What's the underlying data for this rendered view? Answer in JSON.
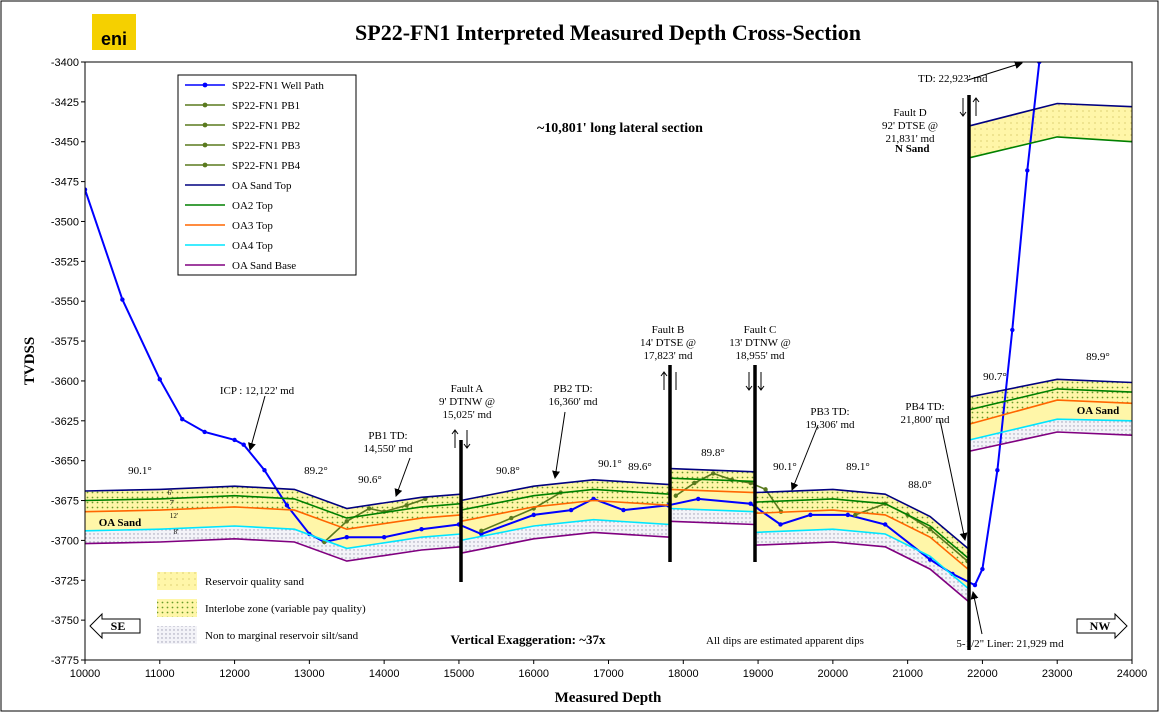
{
  "chart_data": {
    "type": "line",
    "logo": "eni",
    "title": "SP22-FN1 Interpreted Measured Depth Cross-Section",
    "x_label": "Measured Depth",
    "y_label": "TVDSS",
    "xlim": [
      10000,
      24000
    ],
    "xticks": [
      10000,
      11000,
      12000,
      13000,
      14000,
      15000,
      16000,
      17000,
      18000,
      19000,
      20000,
      21000,
      22000,
      23000,
      24000
    ],
    "ylim": [
      -3775,
      -3400
    ],
    "yticks": [
      -3775,
      -3750,
      -3725,
      -3700,
      -3675,
      -3650,
      -3625,
      -3600,
      -3575,
      -3550,
      -3525,
      -3500,
      -3475,
      -3450,
      -3425,
      -3400
    ],
    "series": [
      {
        "name": "SP22-FN1 Well Path",
        "color": "#0000ff",
        "marker": "circle",
        "x": [
          10000,
          10500,
          11000,
          11300,
          11600,
          12000,
          12122,
          12400,
          12700,
          13000,
          13200,
          13500,
          14000,
          14500,
          15000,
          15300,
          16000,
          16500,
          16800,
          17200,
          17800,
          18200,
          18900,
          19300,
          19700,
          20200,
          20700,
          21300,
          21600,
          21900,
          22000,
          22200,
          22400,
          22600,
          22760
        ],
        "values": [
          -3480,
          -3549,
          -3599,
          -3624,
          -3632,
          -3637,
          -3640,
          -3656,
          -3678,
          -3696,
          -3701,
          -3698,
          -3698,
          -3693,
          -3690,
          -3696,
          -3684,
          -3681,
          -3674,
          -3681,
          -3678,
          -3674,
          -3677,
          -3690,
          -3684,
          -3684,
          -3690,
          -3712,
          -3721,
          -3728,
          -3718,
          -3656,
          -3568,
          -3468,
          -3400
        ]
      },
      {
        "name": "SP22-FN1 PB1",
        "color": "#5a7a1e",
        "marker": "circle",
        "x": [
          13200,
          13500,
          13800,
          14000,
          14300,
          14550
        ],
        "values": [
          -3701,
          -3688,
          -3680,
          -3682,
          -3678,
          -3674
        ]
      },
      {
        "name": "SP22-FN1 PB2",
        "color": "#5a7a1e",
        "marker": "circle",
        "x": [
          15300,
          15700,
          16000,
          16360
        ],
        "values": [
          -3694,
          -3686,
          -3680,
          -3670
        ]
      },
      {
        "name": "SP22-FN1 PB3",
        "color": "#5a7a1e",
        "marker": "circle",
        "x": [
          17900,
          18150,
          18400,
          18650,
          18900,
          19100,
          19306
        ],
        "values": [
          -3672,
          -3664,
          -3658,
          -3662,
          -3664,
          -3668,
          -3682
        ]
      },
      {
        "name": "SP22-FN1 PB4",
        "color": "#5a7a1e",
        "marker": "circle",
        "x": [
          20300,
          20700,
          21000,
          21300,
          21800
        ],
        "values": [
          -3684,
          -3677,
          -3684,
          -3693,
          -3713
        ]
      },
      {
        "name": "OA Sand Top",
        "color": "#000080",
        "x": [
          10000,
          11000,
          12000,
          12800,
          13500,
          14500,
          15025,
          null,
          15025,
          16000,
          16800,
          17823,
          null,
          17823,
          18955,
          null,
          18955,
          20000,
          20700,
          21300,
          21831,
          null,
          21831,
          23000,
          24000,
          null,
          21831,
          23000,
          24000
        ],
        "values": [
          -3669,
          -3668,
          -3666,
          -3668,
          -3680,
          -3673,
          -3671,
          null,
          -3675,
          -3666,
          -3662,
          -3665,
          null,
          -3655,
          -3657,
          null,
          -3670,
          -3668,
          -3671,
          -3685,
          -3706,
          null,
          -3610,
          -3599,
          -3601,
          null,
          -3440,
          -3426,
          -3428
        ]
      },
      {
        "name": "OA2 Top",
        "color": "#008000",
        "x": [
          10000,
          11000,
          12000,
          12800,
          13500,
          14500,
          15025,
          null,
          15025,
          16000,
          16800,
          17823,
          null,
          17823,
          18955,
          null,
          18955,
          20000,
          20700,
          21300,
          21831,
          null,
          21831,
          23000,
          24000,
          null,
          21831,
          23000,
          24000
        ],
        "values": [
          -3675,
          -3674,
          -3672,
          -3674,
          -3686,
          -3679,
          -3677,
          null,
          -3681,
          -3672,
          -3668,
          -3671,
          null,
          -3661,
          -3663,
          null,
          -3676,
          -3674,
          -3677,
          -3691,
          -3712,
          null,
          -3618,
          -3605,
          -3607,
          null,
          -3460,
          -3447,
          -3450
        ]
      },
      {
        "name": "OA3 Top",
        "color": "#ff6600",
        "x": [
          10000,
          11000,
          12000,
          12800,
          13500,
          14500,
          15025,
          null,
          15025,
          16000,
          16800,
          17823,
          null,
          17823,
          18955,
          null,
          18955,
          20000,
          20700,
          21300,
          21831,
          null,
          21831,
          23000,
          24000
        ],
        "values": [
          -3682,
          -3681,
          -3679,
          -3681,
          -3693,
          -3686,
          -3684,
          null,
          -3688,
          -3679,
          -3675,
          -3678,
          null,
          -3668,
          -3670,
          null,
          -3683,
          -3681,
          -3684,
          -3698,
          -3719,
          null,
          -3627,
          -3612,
          -3614
        ]
      },
      {
        "name": "OA4 Top",
        "color": "#00e5ff",
        "x": [
          10000,
          11000,
          12000,
          12800,
          13500,
          14500,
          15025,
          null,
          15025,
          16000,
          16800,
          17823,
          null,
          17823,
          18955,
          null,
          18955,
          20000,
          20700,
          21300,
          21831,
          null,
          21831,
          23000,
          24000
        ],
        "values": [
          -3694,
          -3693,
          -3691,
          -3693,
          -3705,
          -3698,
          -3696,
          null,
          -3700,
          -3691,
          -3687,
          -3690,
          null,
          -3680,
          -3682,
          null,
          -3695,
          -3693,
          -3696,
          -3710,
          -3731,
          null,
          -3637,
          -3624,
          -3625
        ]
      },
      {
        "name": "OA Sand Base",
        "color": "#800080",
        "x": [
          10000,
          11000,
          12000,
          12800,
          13500,
          14500,
          15025,
          null,
          15025,
          16000,
          16800,
          17823,
          null,
          17823,
          18955,
          null,
          18955,
          20000,
          20700,
          21300,
          21831,
          null,
          21831,
          23000,
          24000
        ],
        "values": [
          -3702,
          -3701,
          -3699,
          -3701,
          -3713,
          -3706,
          -3704,
          null,
          -3708,
          -3699,
          -3695,
          -3698,
          null,
          -3688,
          -3690,
          null,
          -3703,
          -3701,
          -3704,
          -3718,
          -3739,
          null,
          -3644,
          -3632,
          -3634
        ]
      }
    ],
    "zones": [
      "Reservoir quality sand",
      "Interlobe zone (variable pay quality)",
      "Non to marginal reservoir silt/sand"
    ],
    "annotations": [
      [
        "~10,801' long lateral section"
      ],
      [
        "Vertical Exaggeration: ~37x"
      ],
      [
        "All dips are estimated apparent dips"
      ],
      [
        "TD: 22,923' md"
      ],
      [
        "Fault D",
        "92' DTSE @",
        "21,831' md"
      ],
      [
        "N Sand"
      ],
      [
        "90.7°"
      ],
      [
        "89.9°"
      ],
      [
        "OA Sand"
      ],
      [
        "OA Sand"
      ],
      [
        "ICP : 12,122' md"
      ],
      [
        "PB1 TD:",
        "14,550' md"
      ],
      [
        "Fault A",
        "9' DTNW @",
        "15,025' md"
      ],
      [
        "PB2 TD:",
        "16,360' md"
      ],
      [
        "Fault B",
        "14' DTSE @",
        "17,823' md"
      ],
      [
        "Fault C",
        "13' DTNW @",
        "18,955' md"
      ],
      [
        "PB3 TD:",
        "19,306' md"
      ],
      [
        "PB4 TD:",
        "21,800' md"
      ],
      [
        "5-1/2\" Liner: 21,929 md"
      ],
      [
        "90.1°"
      ],
      [
        "89.2°"
      ],
      [
        "90.6°"
      ],
      [
        "90.8°"
      ],
      [
        "90.1°"
      ],
      [
        "89.6°"
      ],
      [
        "89.8°"
      ],
      [
        "90.1°"
      ],
      [
        "89.1°"
      ],
      [
        "88.0°"
      ],
      [
        "6'"
      ],
      [
        "7'"
      ],
      [
        "12'"
      ],
      [
        "8'"
      ],
      [
        "SE"
      ],
      [
        "NW"
      ]
    ]
  }
}
